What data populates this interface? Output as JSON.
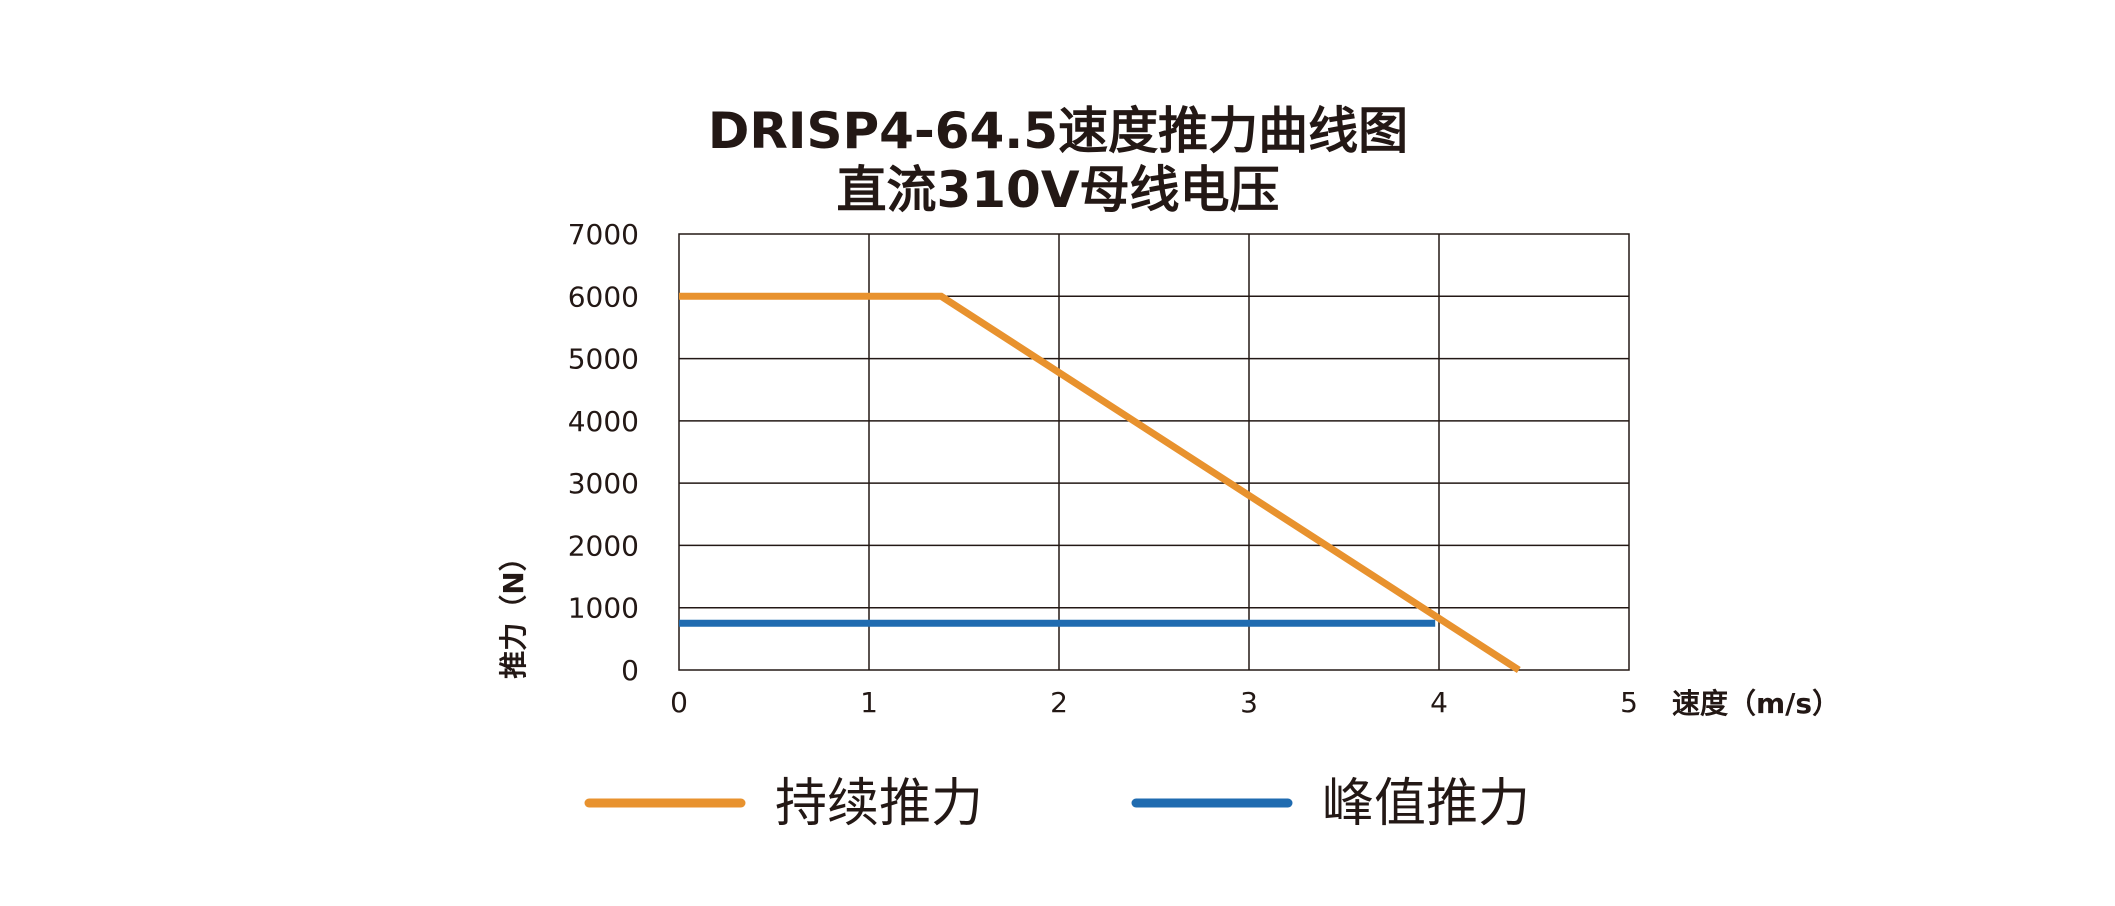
{
  "chart_data": {
    "type": "line",
    "title": "DRISP4-64.5速度推力曲线图",
    "subtitle": "直流310V母线电压",
    "xlabel": "速度（m/s）",
    "ylabel": "推力（N）",
    "xlim": [
      0,
      5
    ],
    "ylim": [
      0,
      7000
    ],
    "xticks": [
      "0",
      "1",
      "2",
      "3",
      "4",
      "5"
    ],
    "yticks": [
      "0",
      "1000",
      "2000",
      "3000",
      "4000",
      "5000",
      "6000",
      "7000"
    ],
    "grid": true,
    "legend_position": "bottom",
    "series": [
      {
        "name": "持续推力",
        "color": "#E8922E",
        "points": [
          [
            0,
            6000
          ],
          [
            1.38,
            6000
          ],
          [
            4.42,
            0
          ]
        ]
      },
      {
        "name": "峰值推力",
        "color": "#1F6BB0",
        "points": [
          [
            0,
            750
          ],
          [
            3.98,
            750
          ]
        ]
      }
    ]
  }
}
